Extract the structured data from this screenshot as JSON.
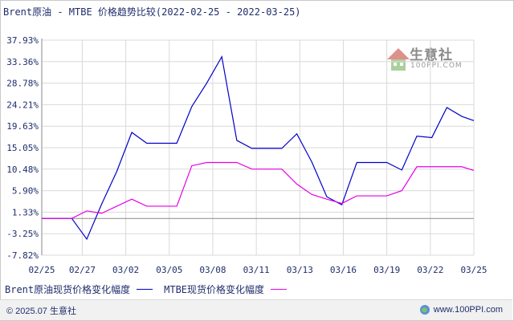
{
  "title": "Brent原油 - MTBE 价格趋势比较(2022-02-25 - 2022-03-25)",
  "watermark": {
    "name": "生意社",
    "url": "100PPI.COM"
  },
  "footer": {
    "copyright": "© 2025.07 生意社",
    "site": "www.100PPI.com"
  },
  "chart_data": {
    "type": "line",
    "title": "Brent原油 - MTBE 价格趋势比较(2022-02-25 - 2022-03-25)",
    "xlabel": "",
    "ylabel": "",
    "y_ticks": [
      "37.93%",
      "33.36%",
      "28.78%",
      "24.21%",
      "19.63%",
      "15.05%",
      "10.48%",
      "5.90%",
      "1.33%",
      "-3.25%",
      "-7.82%"
    ],
    "ylim": [
      -7.82,
      37.93
    ],
    "x_tick_labels": [
      "02/25",
      "02/27",
      "03/02",
      "03/05",
      "03/08",
      "03/11",
      "03/13",
      "03/16",
      "03/19",
      "03/22",
      "03/25"
    ],
    "x_tick_positions": [
      0,
      2.7,
      5.6,
      8.5,
      11.4,
      14.3,
      17.2,
      20.1,
      23,
      25.9,
      28.8
    ],
    "x_range": [
      0,
      28.8
    ],
    "grid": true,
    "legend_position": "bottom-left",
    "series": [
      {
        "name": "Brent原油现货价格变化幅度",
        "color": "#0000cc",
        "x": [
          0,
          1,
          2,
          3,
          4,
          5,
          6,
          7,
          8,
          9,
          10,
          11,
          12,
          13,
          14,
          15,
          16,
          17,
          18,
          19,
          20,
          21,
          22,
          23,
          24,
          25,
          26,
          27,
          28,
          28.8
        ],
        "values": [
          0,
          0,
          0,
          -4.4,
          3.1,
          10.0,
          18.3,
          16.0,
          16.0,
          16.0,
          23.8,
          28.8,
          34.4,
          16.6,
          14.9,
          14.9,
          14.9,
          18.0,
          12.0,
          4.6,
          2.9,
          11.9,
          11.9,
          11.9,
          10.3,
          17.5,
          17.2,
          23.6,
          21.7,
          20.8
        ]
      },
      {
        "name": "MTBE现货价格变化幅度",
        "color": "#e600e6",
        "x": [
          0,
          1,
          2,
          3,
          4,
          5,
          6,
          7,
          8,
          9,
          10,
          11,
          12,
          13,
          14,
          15,
          16,
          17,
          18,
          19,
          20,
          21,
          22,
          23,
          24,
          25,
          26,
          27,
          28,
          28.8
        ],
        "values": [
          0,
          0,
          0,
          1.6,
          1.1,
          2.6,
          4.1,
          2.6,
          2.6,
          2.6,
          11.2,
          11.9,
          11.9,
          11.9,
          10.5,
          10.5,
          10.5,
          7.3,
          5.1,
          4.1,
          3.2,
          4.8,
          4.8,
          4.8,
          5.9,
          11.0,
          11.0,
          11.0,
          11.0,
          10.2
        ]
      }
    ]
  }
}
